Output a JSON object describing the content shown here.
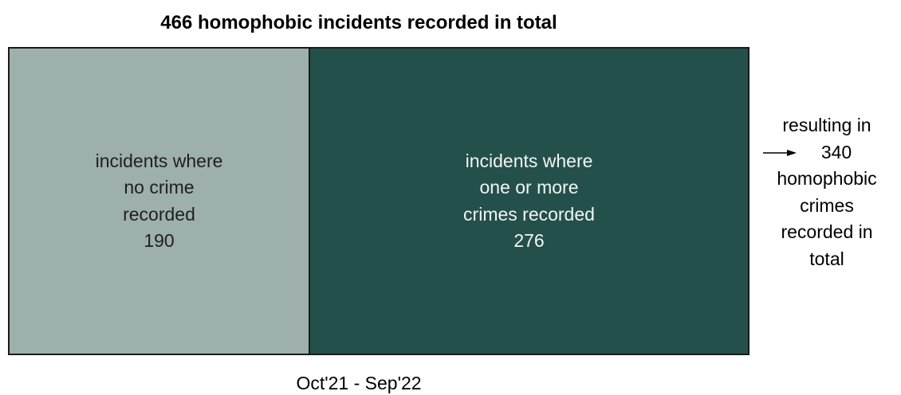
{
  "chart_data": {
    "type": "bar",
    "chart_kind": "100% stacked horizontal bar (area proportional)",
    "title": "466 homophobic incidents recorded in total",
    "total_incidents": 466,
    "period": "Oct'21 - Sep'22",
    "categories": [
      "Oct'21 - Sep'22"
    ],
    "series": [
      {
        "label_lines": [
          "incidents where",
          "no crime",
          "recorded"
        ],
        "value": 190,
        "color": "#9db0ab"
      },
      {
        "label_lines": [
          "incidents where",
          "one or more",
          "crimes recorded"
        ],
        "value": 276,
        "color": "#24504b"
      }
    ],
    "annotation": {
      "lines": [
        "resulting in",
        "340",
        "homophobic",
        "crimes",
        "recorded in",
        "total"
      ],
      "arrow": "right-arrow-icon",
      "value": 340
    },
    "legend": "none",
    "grid": false
  }
}
